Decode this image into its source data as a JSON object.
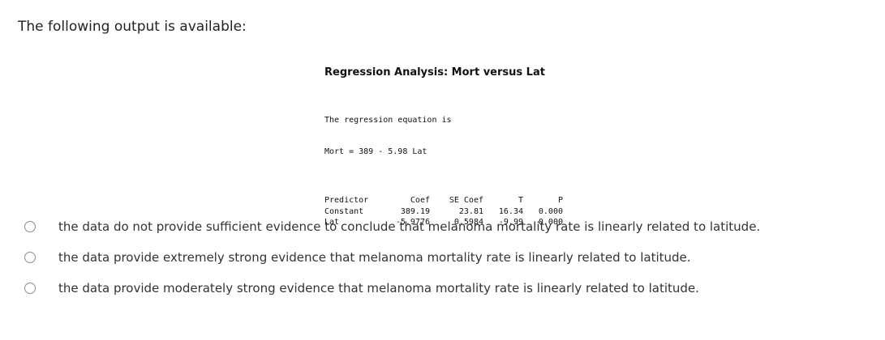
{
  "question": {
    "prompt": "The following output is available:"
  },
  "output": {
    "title": "Regression Analysis: Mort versus Lat",
    "equation_header": "The regression equation is",
    "equation": "Mort = 389 - 5.98 Lat",
    "table": {
      "headers": [
        "Predictor",
        "Coef",
        "SE Coef",
        "T",
        "P"
      ],
      "rows": [
        [
          "Constant",
          "389.19",
          "23.81",
          "16.34",
          "0.000"
        ],
        [
          "Lat",
          "-5.9776",
          "0.5984",
          "-9.99",
          "0.000"
        ]
      ]
    }
  },
  "options": [
    {
      "label": "the data do not provide sufficient evidence to conclude that melanoma mortality rate is linearly related to latitude.",
      "selected": false
    },
    {
      "label": "the data provide extremely strong evidence that melanoma mortality rate is linearly related to latitude.",
      "selected": false
    },
    {
      "label": "the data provide moderately strong evidence that melanoma mortality rate is linearly related to latitude.",
      "selected": false
    }
  ]
}
